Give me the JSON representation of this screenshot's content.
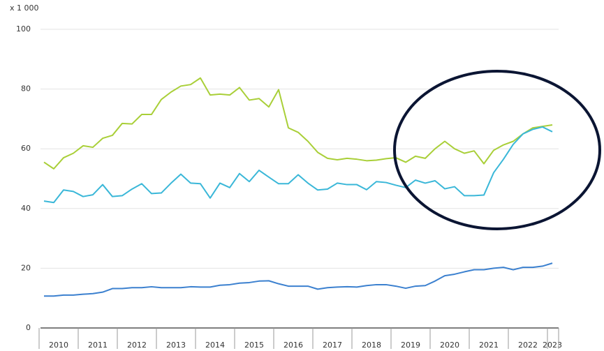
{
  "chart_data": {
    "type": "line",
    "unit_label": "x 1 000",
    "categories": [
      "2010",
      null,
      null,
      null,
      "2011",
      null,
      null,
      null,
      "2012",
      null,
      null,
      null,
      "2013",
      null,
      null,
      null,
      "2014",
      null,
      null,
      null,
      "2015",
      null,
      null,
      null,
      "2016",
      null,
      null,
      null,
      "2017",
      null,
      null,
      null,
      "2018",
      null,
      null,
      null,
      "2019",
      null,
      null,
      null,
      "2020",
      null,
      null,
      null,
      "2021",
      null,
      null,
      null,
      "2022",
      null,
      null,
      null,
      "2023"
    ],
    "series": [
      {
        "color": "#a9cf38",
        "values": [
          55.5,
          53.3,
          57,
          58.5,
          61,
          60.5,
          63.5,
          64.5,
          68.5,
          68.3,
          71.5,
          71.5,
          76.5,
          79,
          81,
          81.5,
          83.7,
          78,
          78.3,
          78,
          80.5,
          76.3,
          76.8,
          74,
          79.8,
          67,
          65.5,
          62.5,
          58.8,
          56.8,
          56.3,
          56.8,
          56.5,
          56,
          56.2,
          56.7,
          57,
          55.5,
          57.5,
          56.8,
          60,
          62.5,
          60,
          58.5,
          59.3,
          55,
          59.5,
          61.3,
          62.5,
          65,
          67,
          67.5,
          68
        ]
      },
      {
        "color": "#3ab7d8",
        "values": [
          42.5,
          42,
          46.2,
          45.7,
          44,
          44.6,
          48,
          44,
          44.3,
          46.5,
          48.3,
          45,
          45.2,
          48.5,
          51.5,
          48.5,
          48.3,
          43.5,
          48.5,
          47,
          51.7,
          49,
          52.8,
          50.5,
          48.3,
          48.3,
          51.3,
          48.5,
          46.2,
          46.5,
          48.5,
          48,
          48,
          46.3,
          49,
          48.7,
          47.8,
          47,
          49.5,
          48.5,
          49.3,
          46.6,
          47.3,
          44.3,
          44.3,
          44.5,
          52,
          56.5,
          61.5,
          65,
          66.5,
          67.3,
          65.7
        ]
      },
      {
        "color": "#3b80cf",
        "values": [
          10.7,
          10.7,
          11,
          11,
          11.3,
          11.5,
          12,
          13.2,
          13.2,
          13.5,
          13.5,
          13.8,
          13.5,
          13.5,
          13.5,
          13.8,
          13.7,
          13.7,
          14.3,
          14.5,
          15,
          15.2,
          15.7,
          15.8,
          14.8,
          14,
          14,
          14,
          13,
          13.5,
          13.7,
          13.8,
          13.7,
          14.2,
          14.5,
          14.5,
          14,
          13.3,
          14,
          14.2,
          15.7,
          17.5,
          18,
          18.8,
          19.5,
          19.5,
          20,
          20.3,
          19.5,
          20.3,
          20.3,
          20.7,
          21.7
        ]
      }
    ],
    "ylim": [
      0,
      100
    ],
    "yticks": [
      0,
      20,
      40,
      60,
      80,
      100
    ],
    "grid": true
  }
}
